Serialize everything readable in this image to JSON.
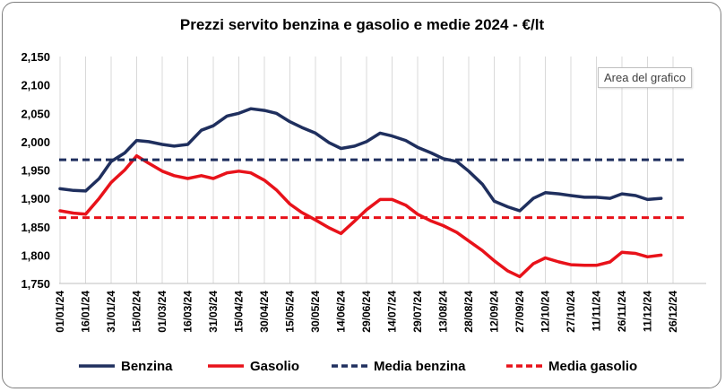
{
  "chart_data": {
    "type": "line",
    "title": "Prezzi servito benzina e gasolio e medie 2024 - €/lt",
    "xlabel": "",
    "ylabel": "",
    "ylim": [
      1.75,
      2.15
    ],
    "yticks": [
      "2,150",
      "2,100",
      "2,050",
      "2,000",
      "1,950",
      "1,900",
      "1,850",
      "1,800",
      "1,750"
    ],
    "xticks": [
      "01/01/24",
      "16/01/24",
      "31/01/24",
      "15/02/24",
      "01/03/24",
      "16/03/24",
      "31/03/24",
      "15/04/24",
      "30/04/24",
      "15/05/24",
      "30/05/24",
      "14/06/24",
      "29/06/24",
      "14/07/24",
      "29/07/24",
      "13/08/24",
      "28/08/24",
      "12/09/24",
      "27/09/24",
      "12/10/24",
      "27/10/24",
      "11/11/24",
      "26/11/24",
      "11/12/24",
      "26/12/24"
    ],
    "x_start": "01/01/24",
    "x_step_days": 15,
    "grid": "vertical",
    "legend_position": "bottom",
    "series": [
      {
        "name": "Benzina",
        "color": "#1f2f5e",
        "style": "solid",
        "points": [
          [
            "01/01/24",
            1.917
          ],
          [
            "09/01/24",
            1.914
          ],
          [
            "16/01/24",
            1.913
          ],
          [
            "24/01/24",
            1.935
          ],
          [
            "31/01/24",
            1.965
          ],
          [
            "08/02/24",
            1.98
          ],
          [
            "15/02/24",
            2.002
          ],
          [
            "22/02/24",
            2.0
          ],
          [
            "01/03/24",
            1.995
          ],
          [
            "08/03/24",
            1.992
          ],
          [
            "16/03/24",
            1.995
          ],
          [
            "24/03/24",
            2.02
          ],
          [
            "31/03/24",
            2.028
          ],
          [
            "08/04/24",
            2.045
          ],
          [
            "15/04/24",
            2.05
          ],
          [
            "22/04/24",
            2.058
          ],
          [
            "30/04/24",
            2.055
          ],
          [
            "07/05/24",
            2.05
          ],
          [
            "15/05/24",
            2.035
          ],
          [
            "22/05/24",
            2.025
          ],
          [
            "30/05/24",
            2.015
          ],
          [
            "07/06/24",
            1.998
          ],
          [
            "14/06/24",
            1.988
          ],
          [
            "22/06/24",
            1.992
          ],
          [
            "29/06/24",
            2.0
          ],
          [
            "07/07/24",
            2.015
          ],
          [
            "14/07/24",
            2.01
          ],
          [
            "22/07/24",
            2.002
          ],
          [
            "29/07/24",
            1.99
          ],
          [
            "06/08/24",
            1.98
          ],
          [
            "13/08/24",
            1.97
          ],
          [
            "21/08/24",
            1.965
          ],
          [
            "28/08/24",
            1.948
          ],
          [
            "05/09/24",
            1.925
          ],
          [
            "12/09/24",
            1.895
          ],
          [
            "20/09/24",
            1.885
          ],
          [
            "27/09/24",
            1.878
          ],
          [
            "05/10/24",
            1.9
          ],
          [
            "12/10/24",
            1.91
          ],
          [
            "20/10/24",
            1.908
          ],
          [
            "27/10/24",
            1.905
          ],
          [
            "04/11/24",
            1.902
          ],
          [
            "11/11/24",
            1.902
          ],
          [
            "19/11/24",
            1.9
          ],
          [
            "26/11/24",
            1.908
          ],
          [
            "04/12/24",
            1.905
          ],
          [
            "11/12/24",
            1.898
          ],
          [
            "19/12/24",
            1.9
          ]
        ]
      },
      {
        "name": "Gasolio",
        "color": "#e8121a",
        "style": "solid",
        "points": [
          [
            "01/01/24",
            1.878
          ],
          [
            "09/01/24",
            1.874
          ],
          [
            "16/01/24",
            1.872
          ],
          [
            "24/01/24",
            1.9
          ],
          [
            "31/01/24",
            1.928
          ],
          [
            "08/02/24",
            1.95
          ],
          [
            "15/02/24",
            1.975
          ],
          [
            "22/02/24",
            1.962
          ],
          [
            "01/03/24",
            1.948
          ],
          [
            "08/03/24",
            1.94
          ],
          [
            "16/03/24",
            1.935
          ],
          [
            "24/03/24",
            1.94
          ],
          [
            "31/03/24",
            1.935
          ],
          [
            "08/04/24",
            1.945
          ],
          [
            "15/04/24",
            1.948
          ],
          [
            "22/04/24",
            1.945
          ],
          [
            "30/04/24",
            1.932
          ],
          [
            "07/05/24",
            1.915
          ],
          [
            "15/05/24",
            1.89
          ],
          [
            "22/05/24",
            1.875
          ],
          [
            "30/05/24",
            1.862
          ],
          [
            "07/06/24",
            1.848
          ],
          [
            "14/06/24",
            1.838
          ],
          [
            "22/06/24",
            1.86
          ],
          [
            "29/06/24",
            1.88
          ],
          [
            "07/07/24",
            1.898
          ],
          [
            "14/07/24",
            1.898
          ],
          [
            "22/07/24",
            1.888
          ],
          [
            "29/07/24",
            1.872
          ],
          [
            "06/08/24",
            1.86
          ],
          [
            "13/08/24",
            1.852
          ],
          [
            "21/08/24",
            1.84
          ],
          [
            "28/08/24",
            1.825
          ],
          [
            "05/09/24",
            1.808
          ],
          [
            "12/09/24",
            1.79
          ],
          [
            "20/09/24",
            1.772
          ],
          [
            "27/09/24",
            1.762
          ],
          [
            "05/10/24",
            1.785
          ],
          [
            "12/10/24",
            1.795
          ],
          [
            "20/10/24",
            1.788
          ],
          [
            "27/10/24",
            1.783
          ],
          [
            "04/11/24",
            1.782
          ],
          [
            "11/11/24",
            1.782
          ],
          [
            "19/11/24",
            1.788
          ],
          [
            "26/11/24",
            1.805
          ],
          [
            "04/12/24",
            1.803
          ],
          [
            "11/12/24",
            1.797
          ],
          [
            "19/12/24",
            1.8
          ]
        ]
      },
      {
        "name": "Media benzina",
        "color": "#1f2f5e",
        "style": "dashed",
        "value": 1.968
      },
      {
        "name": "Media gasolio",
        "color": "#e8121a",
        "style": "dashed",
        "value": 1.866
      }
    ]
  },
  "tooltip": "Area del grafico"
}
